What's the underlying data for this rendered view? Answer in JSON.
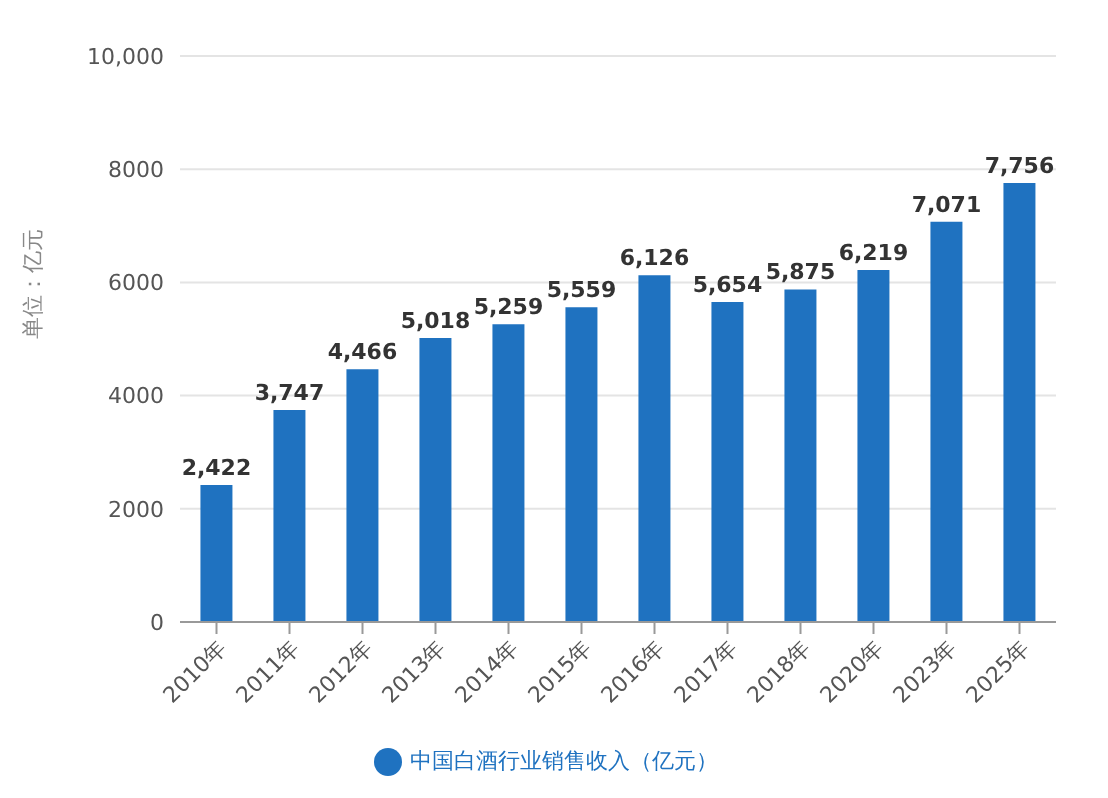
{
  "chart_data": {
    "type": "bar",
    "ylabel": "单位：亿元",
    "categories": [
      "2010年",
      "2011年",
      "2012年",
      "2013年",
      "2014年",
      "2015年",
      "2016年",
      "2017年",
      "2018年",
      "2020年",
      "2023年",
      "2025年"
    ],
    "series": [
      {
        "name": "中国白酒行业销售收入（亿元）",
        "color": "#1f72c0",
        "values": [
          2422,
          3747,
          4466,
          5018,
          5259,
          5559,
          6126,
          5654,
          5875,
          6219,
          7071,
          7756
        ],
        "value_labels": [
          "2,422",
          "3,747",
          "4,466",
          "5,018",
          "5,259",
          "5,559",
          "6,126",
          "5,654",
          "5,875",
          "6,219",
          "7,071",
          "7,756"
        ]
      }
    ],
    "ylim": [
      0,
      10000
    ],
    "yticks": [
      0,
      2000,
      4000,
      6000,
      8000,
      {
        "value": 10000,
        "label": "10,000"
      }
    ],
    "grid": "y",
    "legend": "bottom"
  }
}
